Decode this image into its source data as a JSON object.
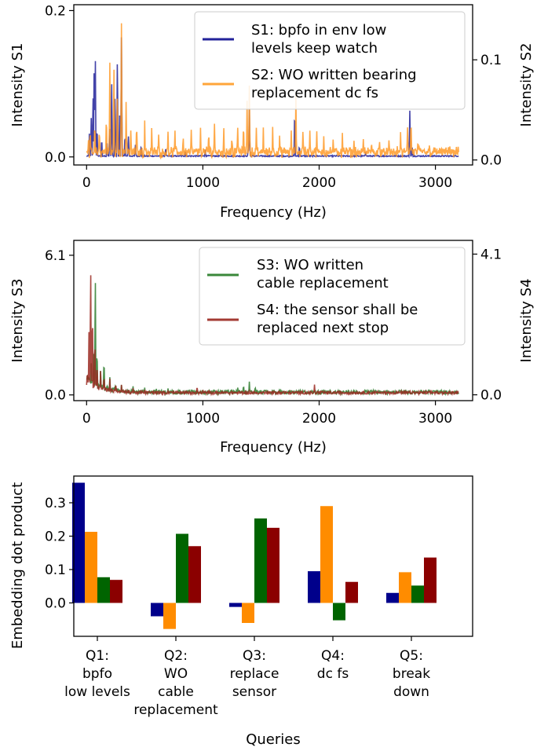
{
  "chart_data": [
    {
      "type": "line",
      "xlabel": "Frequency (Hz)",
      "ylabel_left": "Intensity S1",
      "ylabel_right": "Intensity S2",
      "xlim": [
        -110,
        3320
      ],
      "x_ticks": [
        0,
        1000,
        2000,
        3000
      ],
      "ylim_left": [
        -0.011,
        0.208
      ],
      "y_ticks_left": [
        "0.0",
        "0.2"
      ],
      "ylim_right": [
        -0.005,
        0.155
      ],
      "y_ticks_right": [
        "0.0",
        "0.1"
      ],
      "legend": "top-right",
      "series": [
        {
          "name": "S1: bpfo in env low levels keep watch",
          "color": "#22229a",
          "axis": "left",
          "baseline": 0.001,
          "peaks": [
            [
              25,
              0.04
            ],
            [
              40,
              0.06
            ],
            [
              55,
              0.1
            ],
            [
              65,
              0.14
            ],
            [
              75,
              0.175
            ],
            [
              90,
              0.05
            ],
            [
              130,
              0.03
            ],
            [
              175,
              0.025
            ],
            [
              200,
              0.045
            ],
            [
              215,
              0.12
            ],
            [
              245,
              0.1
            ],
            [
              265,
              0.155
            ],
            [
              285,
              0.07
            ],
            [
              300,
              0.192
            ],
            [
              330,
              0.04
            ],
            [
              360,
              0.03
            ],
            [
              420,
              0.018
            ],
            [
              470,
              0.02
            ],
            [
              680,
              0.012
            ],
            [
              850,
              0.01
            ],
            [
              1020,
              0.01
            ],
            [
              1390,
              0.015
            ],
            [
              1400,
              0.07
            ],
            [
              1790,
              0.075
            ],
            [
              1830,
              0.02
            ],
            [
              2400,
              0.008
            ],
            [
              2780,
              0.072
            ],
            [
              2800,
              0.015
            ]
          ]
        },
        {
          "name": "S2: WO written bearing replacement dc fs",
          "color": "#ff9a28",
          "axis": "right",
          "baseline": 0.004,
          "peaks": [
            [
              15,
              0.025
            ],
            [
              30,
              0.03
            ],
            [
              70,
              0.04
            ],
            [
              110,
              0.03
            ],
            [
              170,
              0.05
            ],
            [
              200,
              0.1
            ],
            [
              235,
              0.11
            ],
            [
              265,
              0.08
            ],
            [
              300,
              0.15
            ],
            [
              340,
              0.06
            ],
            [
              380,
              0.03
            ],
            [
              430,
              0.04
            ],
            [
              500,
              0.035
            ],
            [
              560,
              0.03
            ],
            [
              620,
              0.025
            ],
            [
              700,
              0.03
            ],
            [
              760,
              0.03
            ],
            [
              830,
              0.025
            ],
            [
              900,
              0.03
            ],
            [
              980,
              0.028
            ],
            [
              1050,
              0.03
            ],
            [
              1100,
              0.035
            ],
            [
              1180,
              0.03
            ],
            [
              1250,
              0.025
            ],
            [
              1300,
              0.035
            ],
            [
              1350,
              0.04
            ],
            [
              1380,
              0.06
            ],
            [
              1400,
              0.075
            ],
            [
              1460,
              0.03
            ],
            [
              1520,
              0.03
            ],
            [
              1600,
              0.03
            ],
            [
              1660,
              0.025
            ],
            [
              1760,
              0.03
            ],
            [
              1800,
              0.065
            ],
            [
              1860,
              0.03
            ],
            [
              1920,
              0.03
            ],
            [
              1980,
              0.025
            ],
            [
              2040,
              0.025
            ],
            [
              2120,
              0.02
            ],
            [
              2200,
              0.025
            ],
            [
              2300,
              0.02
            ],
            [
              2380,
              0.018
            ],
            [
              2450,
              0.02
            ],
            [
              2520,
              0.015
            ],
            [
              2600,
              0.018
            ],
            [
              2700,
              0.025
            ],
            [
              2760,
              0.035
            ],
            [
              2790,
              0.05
            ],
            [
              2850,
              0.02
            ],
            [
              2950,
              0.015
            ],
            [
              3050,
              0.015
            ],
            [
              3150,
              0.012
            ]
          ]
        }
      ]
    },
    {
      "type": "line",
      "xlabel": "Frequency (Hz)",
      "ylabel_left": "Intensity S3",
      "ylabel_right": "Intensity S4",
      "xlim": [
        -110,
        3320
      ],
      "x_ticks": [
        0,
        1000,
        2000,
        3000
      ],
      "ylim_left": [
        -0.25,
        6.75
      ],
      "y_ticks_left": [
        "0.0",
        "6.1"
      ],
      "ylim_right": [
        -0.17,
        4.5
      ],
      "y_ticks_right": [
        "0.0",
        "4.1"
      ],
      "legend": "top-right",
      "series": [
        {
          "name": "S3: WO written cable replacement",
          "color": "#2e7d2e",
          "axis": "left",
          "baseline": 0.1,
          "peaks": [
            [
              40,
              1.5
            ],
            [
              60,
              2.0
            ],
            [
              75,
              6.5
            ],
            [
              90,
              2.5
            ],
            [
              120,
              1.2
            ],
            [
              150,
              1.8
            ],
            [
              200,
              0.8
            ],
            [
              250,
              0.6
            ],
            [
              300,
              0.5
            ],
            [
              400,
              0.4
            ],
            [
              500,
              0.35
            ],
            [
              600,
              0.3
            ],
            [
              700,
              0.3
            ],
            [
              800,
              0.25
            ],
            [
              900,
              0.25
            ],
            [
              1000,
              0.2
            ],
            [
              1100,
              0.2
            ],
            [
              1200,
              0.2
            ],
            [
              1300,
              0.35
            ],
            [
              1350,
              0.5
            ],
            [
              1400,
              0.65
            ],
            [
              1450,
              0.45
            ],
            [
              1500,
              0.2
            ],
            [
              1600,
              0.15
            ],
            [
              1800,
              0.12
            ],
            [
              2000,
              0.1
            ],
            [
              2300,
              0.08
            ],
            [
              2600,
              0.08
            ],
            [
              2900,
              0.1
            ],
            [
              3100,
              0.08
            ]
          ]
        },
        {
          "name": "S4: the sensor shall be replaced next stop",
          "color": "#9b2a22",
          "axis": "right",
          "baseline": 0.05,
          "peaks": [
            [
              20,
              2.0
            ],
            [
              35,
              4.3
            ],
            [
              50,
              3.0
            ],
            [
              70,
              2.0
            ],
            [
              90,
              1.2
            ],
            [
              120,
              0.8
            ],
            [
              150,
              0.7
            ],
            [
              200,
              0.5
            ],
            [
              250,
              0.4
            ],
            [
              300,
              0.3
            ],
            [
              400,
              0.2
            ],
            [
              500,
              0.15
            ],
            [
              700,
              0.12
            ],
            [
              950,
              0.3
            ],
            [
              1000,
              0.15
            ],
            [
              1400,
              0.12
            ],
            [
              1700,
              0.1
            ],
            [
              1960,
              0.35
            ],
            [
              2000,
              0.1
            ],
            [
              2500,
              0.08
            ],
            [
              2900,
              0.1
            ],
            [
              3000,
              0.08
            ]
          ]
        }
      ]
    },
    {
      "type": "bar",
      "xlabel": "Queries",
      "ylabel": "Embedding dot product",
      "ylim": [
        -0.1,
        0.38
      ],
      "y_ticks": [
        "0.0",
        "0.1",
        "0.2",
        "0.3"
      ],
      "categories": [
        [
          "Q1:",
          "bpfo",
          "low levels"
        ],
        [
          "Q2:",
          "WO",
          "cable",
          "replacement"
        ],
        [
          "Q3:",
          "replace",
          "sensor"
        ],
        [
          "Q4:",
          "dc fs"
        ],
        [
          "Q5:",
          "break",
          "down"
        ]
      ],
      "series": [
        {
          "color": "#00008b",
          "values": [
            0.36,
            -0.04,
            -0.012,
            0.095,
            0.03
          ]
        },
        {
          "color": "#ff8c00",
          "values": [
            0.213,
            -0.078,
            -0.06,
            0.29,
            0.092
          ]
        },
        {
          "color": "#006400",
          "values": [
            0.077,
            0.207,
            0.253,
            -0.052,
            0.052
          ]
        },
        {
          "color": "#8b0000",
          "values": [
            0.069,
            0.17,
            0.225,
            0.063,
            0.136
          ]
        }
      ]
    }
  ]
}
